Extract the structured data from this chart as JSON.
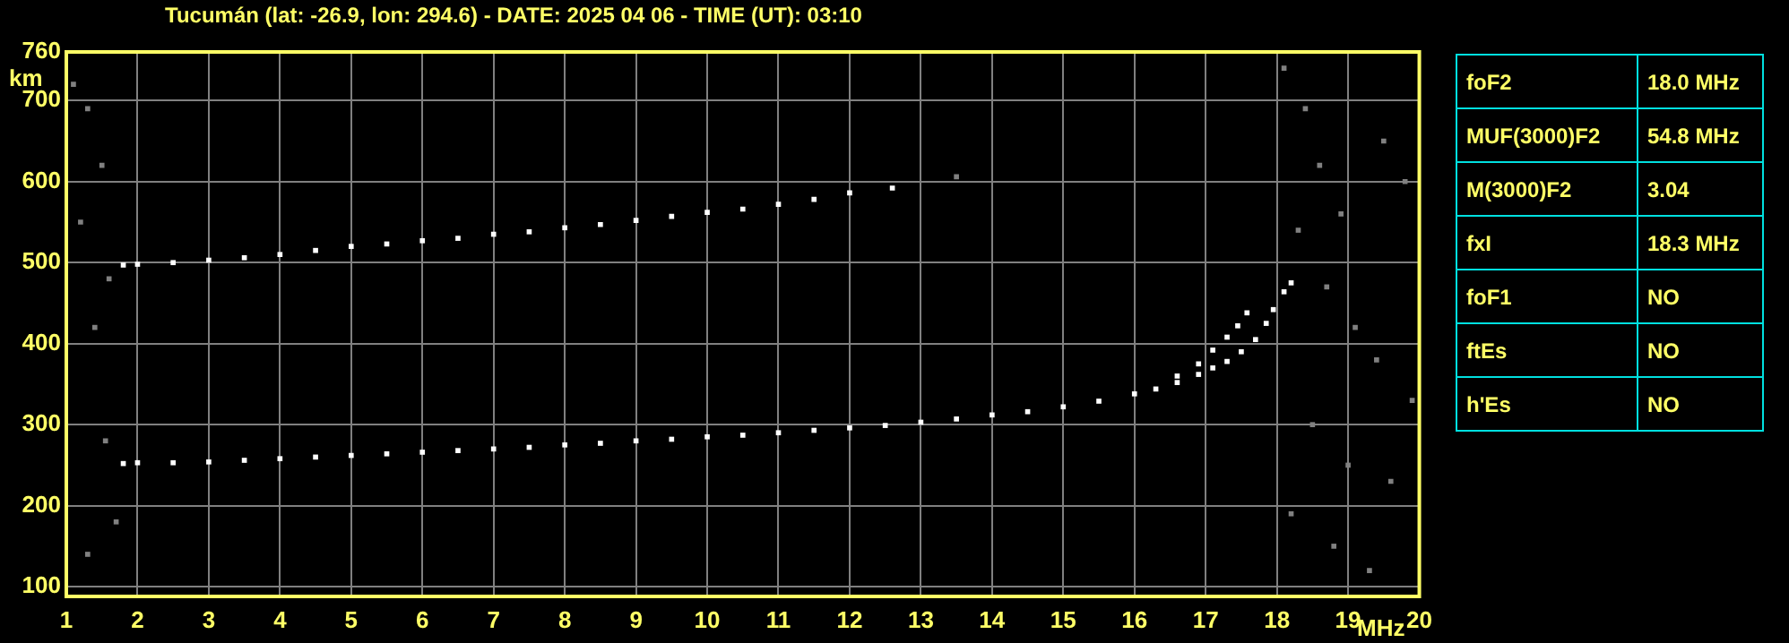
{
  "chart_data": [
    {
      "type": "scatter",
      "title": "Tucumán (lat: -26.9, lon: 294.6) - DATE: 2025 04 06 - TIME (UT): 03:10",
      "xlabel": "MHz",
      "ylabel": "km",
      "xlim": [
        1,
        20
      ],
      "xticks": [
        1,
        2,
        3,
        4,
        5,
        6,
        7,
        8,
        9,
        10,
        11,
        12,
        13,
        14,
        15,
        16,
        17,
        18,
        19,
        20
      ],
      "ylim": [
        88,
        760
      ],
      "yticks": [
        100,
        200,
        300,
        400,
        500,
        600,
        700,
        760
      ],
      "grid": true,
      "marker": "square",
      "legend": false,
      "series": [
        {
          "color": "#ffffff",
          "x": [
            1.8,
            2,
            2.5,
            3,
            3.5,
            4,
            4.5,
            5,
            5.5,
            6,
            6.5,
            7,
            7.5,
            8,
            8.5,
            9,
            9.5,
            10,
            10.5,
            11,
            11.5,
            12,
            12.5,
            13,
            13.5,
            14,
            14.5,
            15,
            15.5,
            16,
            16.3,
            16.6,
            16.9,
            17.1,
            17.3,
            17.5,
            17.7,
            17.85,
            17.95,
            18.1,
            18.2
          ],
          "values": [
            252,
            253,
            253,
            254,
            256,
            258,
            260,
            262,
            264,
            266,
            268,
            270,
            272,
            275,
            277,
            280,
            282,
            285,
            287,
            290,
            293,
            296,
            299,
            303,
            307,
            312,
            316,
            322,
            329,
            338,
            344,
            352,
            362,
            370,
            378,
            390,
            405,
            425,
            442,
            464,
            475
          ]
        },
        {
          "color": "#ffffff",
          "x": [
            16.6,
            16.9,
            17.1,
            17.3,
            17.45,
            17.58
          ],
          "values": [
            360,
            375,
            392,
            408,
            422,
            438
          ]
        },
        {
          "color": "#ffffff",
          "x": [
            1.8,
            2,
            2.5,
            3,
            3.5,
            4,
            4.5,
            5,
            5.5,
            6,
            6.5,
            7,
            7.5,
            8,
            8.5,
            9,
            9.5,
            10,
            10.5,
            11,
            11.5,
            12,
            12.6
          ],
          "values": [
            497,
            498,
            500,
            503,
            506,
            510,
            515,
            520,
            523,
            527,
            530,
            535,
            538,
            543,
            547,
            552,
            557,
            562,
            566,
            572,
            578,
            586,
            592
          ]
        },
        {
          "color": "#808080",
          "x": [
            1.1,
            1.3,
            1.5,
            1.2,
            1.6,
            1.4,
            1.55,
            1.7,
            1.3,
            13.5,
            18.1,
            18.4,
            18.6,
            18.9,
            19.2,
            19.5,
            19.8,
            18.3,
            18.7,
            19.1,
            19.4,
            19.9,
            18.5,
            19.0,
            19.6,
            18.2,
            18.8,
            19.3
          ],
          "values": [
            720,
            690,
            620,
            550,
            480,
            420,
            280,
            180,
            140,
            606,
            740,
            690,
            620,
            560,
            null,
            650,
            600,
            540,
            470,
            420,
            380,
            330,
            300,
            250,
            230,
            190,
            150,
            120
          ]
        }
      ]
    },
    {
      "type": "other",
      "annotations": [
        "foF2",
        "18.0 MHz",
        "MUF(3000)F2",
        "54.8 MHz",
        "M(3000)F2",
        "3.04",
        "fxI",
        "18.3 MHz",
        "foF1",
        "NO",
        "ftEs",
        "NO",
        "h'Es",
        "NO"
      ]
    }
  ]
}
